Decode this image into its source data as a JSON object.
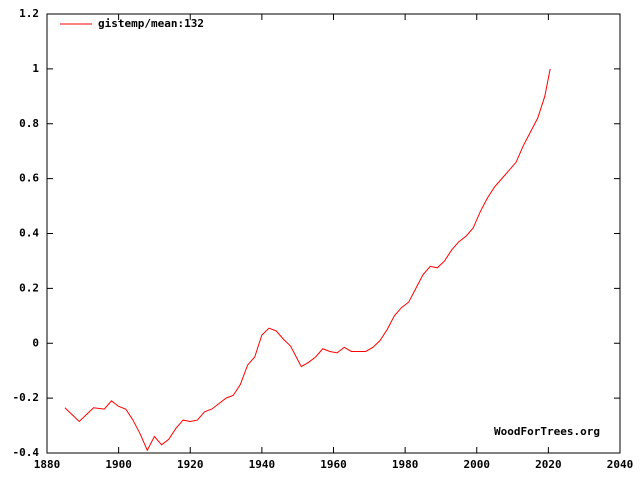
{
  "chart_data": {
    "type": "line",
    "x": [
      1885,
      1887,
      1889,
      1891,
      1893,
      1896,
      1898,
      1900,
      1902,
      1904,
      1906,
      1908,
      1910,
      1912,
      1914,
      1916,
      1918,
      1920,
      1922,
      1924,
      1926,
      1928,
      1930,
      1932,
      1934,
      1936,
      1938,
      1940,
      1942,
      1944,
      1946,
      1948,
      1950,
      1951,
      1953,
      1955,
      1957,
      1959,
      1961,
      1963,
      1965,
      1967,
      1969,
      1971,
      1973,
      1975,
      1977,
      1979,
      1981,
      1983,
      1985,
      1987,
      1989,
      1991,
      1993,
      1995,
      1997,
      1999,
      2001,
      2003,
      2005,
      2007,
      2009,
      2011,
      2013,
      2015,
      2017,
      2019,
      2020.5
    ],
    "series": [
      {
        "name": "gistemp/mean:132",
        "color": "#ff0000",
        "values": [
          -0.235,
          -0.26,
          -0.285,
          -0.26,
          -0.235,
          -0.24,
          -0.21,
          -0.23,
          -0.24,
          -0.28,
          -0.33,
          -0.39,
          -0.34,
          -0.37,
          -0.35,
          -0.31,
          -0.28,
          -0.285,
          -0.28,
          -0.25,
          -0.24,
          -0.22,
          -0.2,
          -0.19,
          -0.15,
          -0.08,
          -0.05,
          0.03,
          0.055,
          0.045,
          0.015,
          -0.01,
          -0.06,
          -0.085,
          -0.07,
          -0.05,
          -0.02,
          -0.03,
          -0.035,
          -0.015,
          -0.03,
          -0.03,
          -0.03,
          -0.015,
          0.01,
          0.05,
          0.1,
          0.13,
          0.15,
          0.2,
          0.25,
          0.28,
          0.275,
          0.3,
          0.34,
          0.37,
          0.39,
          0.42,
          0.48,
          0.53,
          0.57,
          0.6,
          0.63,
          0.66,
          0.72,
          0.77,
          0.82,
          0.9,
          1.0
        ]
      }
    ],
    "xlim": [
      1880,
      2040
    ],
    "xticks": [
      1880,
      1900,
      1920,
      1940,
      1960,
      1980,
      2000,
      2020,
      2040
    ],
    "ylim": [
      -0.4,
      1.2
    ],
    "yticks": [
      -0.4,
      -0.2,
      0,
      0.2,
      0.4,
      0.6,
      0.8,
      1,
      1.2
    ],
    "annotation": "WoodForTrees.org",
    "legend": "top-left"
  }
}
